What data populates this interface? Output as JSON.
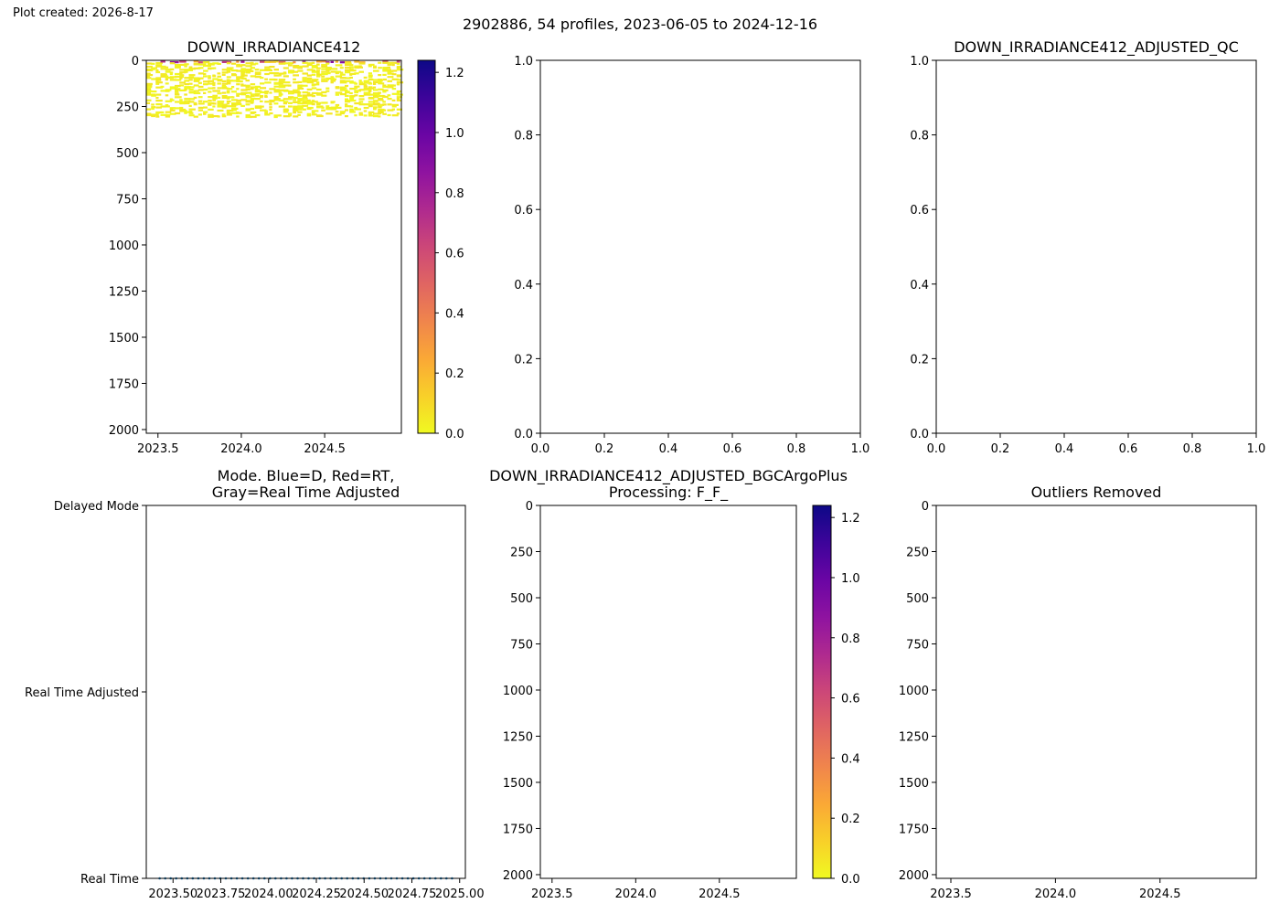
{
  "header": {
    "created": "Plot created: 2026-8-17",
    "title": "2902886, 54 profiles, 2023-06-05 to 2024-12-16"
  },
  "chart_data": [
    {
      "id": "irradiance",
      "type": "heatmap",
      "title": "DOWN_IRRADIANCE412",
      "x_ticks": [
        "2023.5",
        "2024.0",
        "2024.5"
      ],
      "x_tick_values": [
        2023.5,
        2024.0,
        2024.5
      ],
      "xlim": [
        2023.43,
        2024.96
      ],
      "y_ticks": [
        "0",
        "250",
        "500",
        "750",
        "1000",
        "1250",
        "1500",
        "1750",
        "2000"
      ],
      "y_tick_values": [
        0,
        250,
        500,
        750,
        1000,
        1250,
        1500,
        1750,
        2000
      ],
      "ylim": [
        2020,
        0
      ],
      "y_inverted": true,
      "data_depth_range": [
        0,
        300
      ],
      "x_range": [
        2023.43,
        2024.96
      ],
      "value_note": "values mostly near 0, a few near-surface values higher",
      "colorbar": {
        "colormap": "plasma_r",
        "range": [
          0,
          1.24
        ],
        "ticks": [
          "0.0",
          "0.2",
          "0.4",
          "0.6",
          "0.8",
          "1.0",
          "1.2"
        ],
        "tick_values": [
          0,
          0.2,
          0.4,
          0.6,
          0.8,
          1.0,
          1.2
        ]
      }
    },
    {
      "id": "empty-top-middle",
      "type": "scatter",
      "title": "",
      "x_ticks": [
        "0.0",
        "0.2",
        "0.4",
        "0.6",
        "0.8",
        "1.0"
      ],
      "x_tick_values": [
        0,
        0.2,
        0.4,
        0.6,
        0.8,
        1.0
      ],
      "y_ticks": [
        "0.0",
        "0.2",
        "0.4",
        "0.6",
        "0.8",
        "1.0"
      ],
      "y_tick_values": [
        0,
        0.2,
        0.4,
        0.6,
        0.8,
        1.0
      ],
      "xlim": [
        0,
        1
      ],
      "ylim": [
        0,
        1
      ]
    },
    {
      "id": "adjusted-qc",
      "type": "scatter",
      "title": "DOWN_IRRADIANCE412_ADJUSTED_QC",
      "x_ticks": [
        "0.0",
        "0.2",
        "0.4",
        "0.6",
        "0.8",
        "1.0"
      ],
      "x_tick_values": [
        0,
        0.2,
        0.4,
        0.6,
        0.8,
        1.0
      ],
      "y_ticks": [
        "0.0",
        "0.2",
        "0.4",
        "0.6",
        "0.8",
        "1.0"
      ],
      "y_tick_values": [
        0,
        0.2,
        0.4,
        0.6,
        0.8,
        1.0
      ],
      "xlim": [
        0,
        1
      ],
      "ylim": [
        0,
        1
      ]
    },
    {
      "id": "mode",
      "type": "scatter",
      "title": [
        "Mode. Blue=D, Red=RT,",
        "Gray=Real Time Adjusted"
      ],
      "x_ticks": [
        "2023.50",
        "2023.75",
        "2024.00",
        "2024.25",
        "2024.50",
        "2024.75",
        "2025.00"
      ],
      "x_tick_values": [
        2023.5,
        2023.75,
        2024.0,
        2024.25,
        2024.5,
        2024.75,
        2025.0
      ],
      "xlim": [
        2023.36,
        2025.03
      ],
      "y_ticks": [
        "Real Time",
        "Real Time Adjusted",
        "Delayed Mode"
      ],
      "y_tick_values": [
        0,
        1,
        2
      ],
      "ylim": [
        0,
        2
      ],
      "series": [
        {
          "color": "#1f77b4",
          "y": 0,
          "x_start": 2023.43,
          "x_end": 2024.96,
          "count": 54
        }
      ]
    },
    {
      "id": "bgcargoplus",
      "type": "heatmap",
      "title": [
        "DOWN_IRRADIANCE412_ADJUSTED_BGCArgoPlus",
        "Processing: F_F_"
      ],
      "x_ticks": [
        "2023.5",
        "2024.0",
        "2024.5"
      ],
      "x_tick_values": [
        2023.5,
        2024.0,
        2024.5
      ],
      "xlim": [
        2023.43,
        2024.96
      ],
      "y_ticks": [
        "0",
        "250",
        "500",
        "750",
        "1000",
        "1250",
        "1500",
        "1750",
        "2000"
      ],
      "y_tick_values": [
        0,
        250,
        500,
        750,
        1000,
        1250,
        1500,
        1750,
        2000
      ],
      "ylim": [
        2020,
        0
      ],
      "y_inverted": true,
      "colorbar": {
        "colormap": "plasma_r",
        "range": [
          0,
          1.24
        ],
        "ticks": [
          "0.0",
          "0.2",
          "0.4",
          "0.6",
          "0.8",
          "1.0",
          "1.2"
        ],
        "tick_values": [
          0,
          0.2,
          0.4,
          0.6,
          0.8,
          1.0,
          1.2
        ]
      }
    },
    {
      "id": "outliers",
      "type": "heatmap",
      "title": "Outliers Removed",
      "x_ticks": [
        "2023.5",
        "2024.0",
        "2024.5"
      ],
      "x_tick_values": [
        2023.5,
        2024.0,
        2024.5
      ],
      "xlim": [
        2023.43,
        2024.96
      ],
      "y_ticks": [
        "0",
        "250",
        "500",
        "750",
        "1000",
        "1250",
        "1500",
        "1750",
        "2000"
      ],
      "y_tick_values": [
        0,
        250,
        500,
        750,
        1000,
        1250,
        1500,
        1750,
        2000
      ],
      "ylim": [
        2020,
        0
      ],
      "y_inverted": true
    }
  ]
}
